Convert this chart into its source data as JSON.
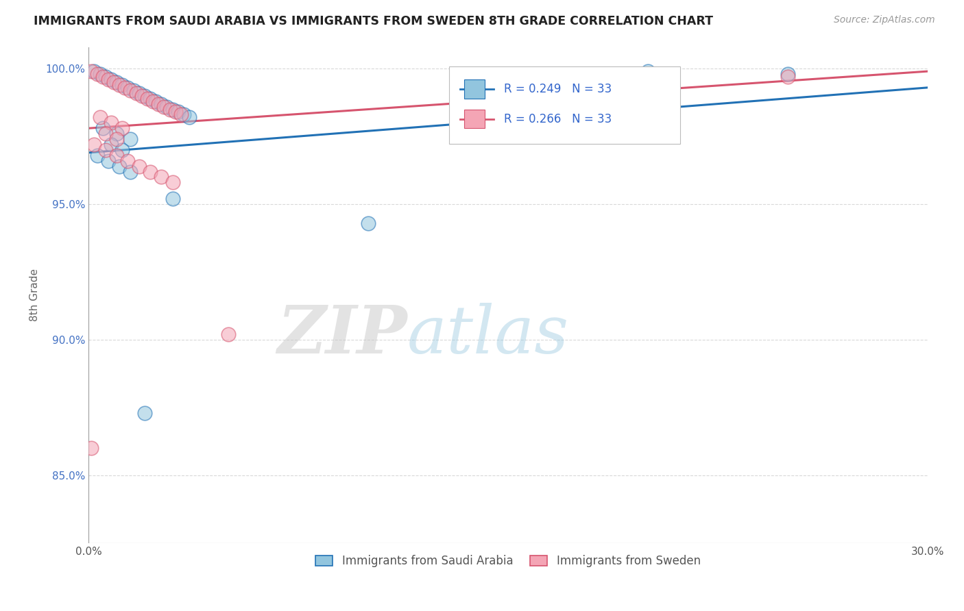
{
  "title": "IMMIGRANTS FROM SAUDI ARABIA VS IMMIGRANTS FROM SWEDEN 8TH GRADE CORRELATION CHART",
  "source": "Source: ZipAtlas.com",
  "ylabel": "8th Grade",
  "xmin": 0.0,
  "xmax": 0.3,
  "ymin": 0.825,
  "ymax": 1.008,
  "yticks": [
    0.85,
    0.9,
    0.95,
    1.0
  ],
  "ytick_labels": [
    "85.0%",
    "90.0%",
    "95.0%",
    "100.0%"
  ],
  "legend_label1": "Immigrants from Saudi Arabia",
  "legend_label2": "Immigrants from Sweden",
  "color_blue": "#92c5de",
  "color_pink": "#f4a5b5",
  "line_color_blue": "#2171b5",
  "line_color_pink": "#d6546e",
  "R1": 0.249,
  "R2": 0.266,
  "N1": 33,
  "N2": 33,
  "blue_x": [
    0.001,
    0.002,
    0.003,
    0.004,
    0.005,
    0.006,
    0.007,
    0.008,
    0.009,
    0.01,
    0.011,
    0.012,
    0.013,
    0.014,
    0.015,
    0.016,
    0.017,
    0.018,
    0.02,
    0.022,
    0.025,
    0.028,
    0.03,
    0.035,
    0.04,
    0.05,
    0.055,
    0.06,
    0.1,
    0.025,
    0.018,
    0.2,
    0.25
  ],
  "blue_y": [
    0.998,
    0.997,
    0.996,
    0.995,
    0.994,
    0.993,
    0.992,
    0.991,
    0.99,
    0.989,
    0.988,
    0.987,
    0.986,
    0.985,
    0.984,
    0.983,
    0.982,
    0.981,
    0.98,
    0.979,
    0.978,
    0.977,
    0.976,
    0.975,
    0.974,
    0.973,
    0.972,
    0.971,
    0.943,
    0.96,
    0.87,
    0.999,
    0.998
  ],
  "pink_x": [
    0.001,
    0.002,
    0.003,
    0.004,
    0.005,
    0.006,
    0.007,
    0.008,
    0.009,
    0.01,
    0.011,
    0.012,
    0.013,
    0.014,
    0.015,
    0.016,
    0.017,
    0.018,
    0.02,
    0.022,
    0.025,
    0.028,
    0.03,
    0.035,
    0.04,
    0.05,
    0.06,
    0.048,
    0.005,
    0.003,
    0.2,
    0.25,
    0.002
  ],
  "pink_y": [
    0.999,
    0.998,
    0.997,
    0.996,
    0.995,
    0.994,
    0.993,
    0.992,
    0.991,
    0.99,
    0.989,
    0.988,
    0.987,
    0.986,
    0.985,
    0.984,
    0.983,
    0.982,
    0.981,
    0.98,
    0.979,
    0.978,
    0.977,
    0.976,
    0.975,
    0.974,
    0.973,
    0.902,
    0.971,
    0.965,
    0.998,
    0.997,
    0.96
  ],
  "watermark_zip": "ZIP",
  "watermark_atlas": "atlas",
  "background_color": "#ffffff",
  "grid_color": "#d0d0d0"
}
